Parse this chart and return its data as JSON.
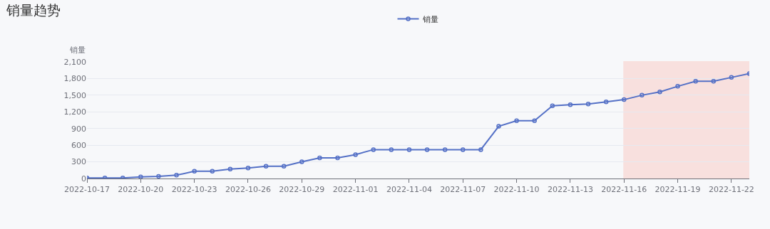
{
  "chart_data": {
    "type": "line",
    "title": "销量趋势",
    "ylabel": "销量",
    "x": [
      "2022-10-17",
      "2022-10-18",
      "2022-10-19",
      "2022-10-20",
      "2022-10-21",
      "2022-10-22",
      "2022-10-23",
      "2022-10-24",
      "2022-10-25",
      "2022-10-26",
      "2022-10-27",
      "2022-10-28",
      "2022-10-29",
      "2022-10-30",
      "2022-10-31",
      "2022-11-01",
      "2022-11-02",
      "2022-11-03",
      "2022-11-04",
      "2022-11-05",
      "2022-11-06",
      "2022-11-07",
      "2022-11-08",
      "2022-11-09",
      "2022-11-10",
      "2022-11-11",
      "2022-11-12",
      "2022-11-13",
      "2022-11-14",
      "2022-11-15",
      "2022-11-16",
      "2022-11-17",
      "2022-11-18",
      "2022-11-19",
      "2022-11-20",
      "2022-11-21",
      "2022-11-22",
      "2022-11-23"
    ],
    "series": [
      {
        "name": "销量",
        "color": "#5470c6",
        "values": [
          10,
          10,
          10,
          30,
          40,
          60,
          130,
          130,
          170,
          190,
          220,
          220,
          300,
          370,
          370,
          430,
          520,
          520,
          520,
          520,
          520,
          520,
          520,
          940,
          1040,
          1040,
          1310,
          1330,
          1340,
          1380,
          1420,
          1500,
          1560,
          1660,
          1750,
          1750,
          1820,
          1890
        ]
      }
    ],
    "xlim": [
      "2022-10-17",
      "2022-11-23"
    ],
    "xticks": [
      "2022-10-17",
      "2022-10-20",
      "2022-10-23",
      "2022-10-26",
      "2022-10-29",
      "2022-11-01",
      "2022-11-04",
      "2022-11-07",
      "2022-11-10",
      "2022-11-13",
      "2022-11-16",
      "2022-11-19",
      "2022-11-22"
    ],
    "ylim": [
      0,
      2100
    ],
    "yticks": [
      {
        "value": 0,
        "label": "0"
      },
      {
        "value": 300,
        "label": "300"
      },
      {
        "value": 600,
        "label": "600"
      },
      {
        "value": 900,
        "label": "900"
      },
      {
        "value": 1200,
        "label": "1,200"
      },
      {
        "value": 1500,
        "label": "1,500"
      },
      {
        "value": 1800,
        "label": "1,800"
      },
      {
        "value": 2100,
        "label": "2,100"
      }
    ],
    "grid": "y",
    "legend": "top",
    "marker": "circle",
    "line_style": "solid",
    "bands": [
      {
        "axis": "x",
        "from": "2022-11-16",
        "to": "2022-11-23",
        "color": "#ff3b1f"
      }
    ]
  }
}
